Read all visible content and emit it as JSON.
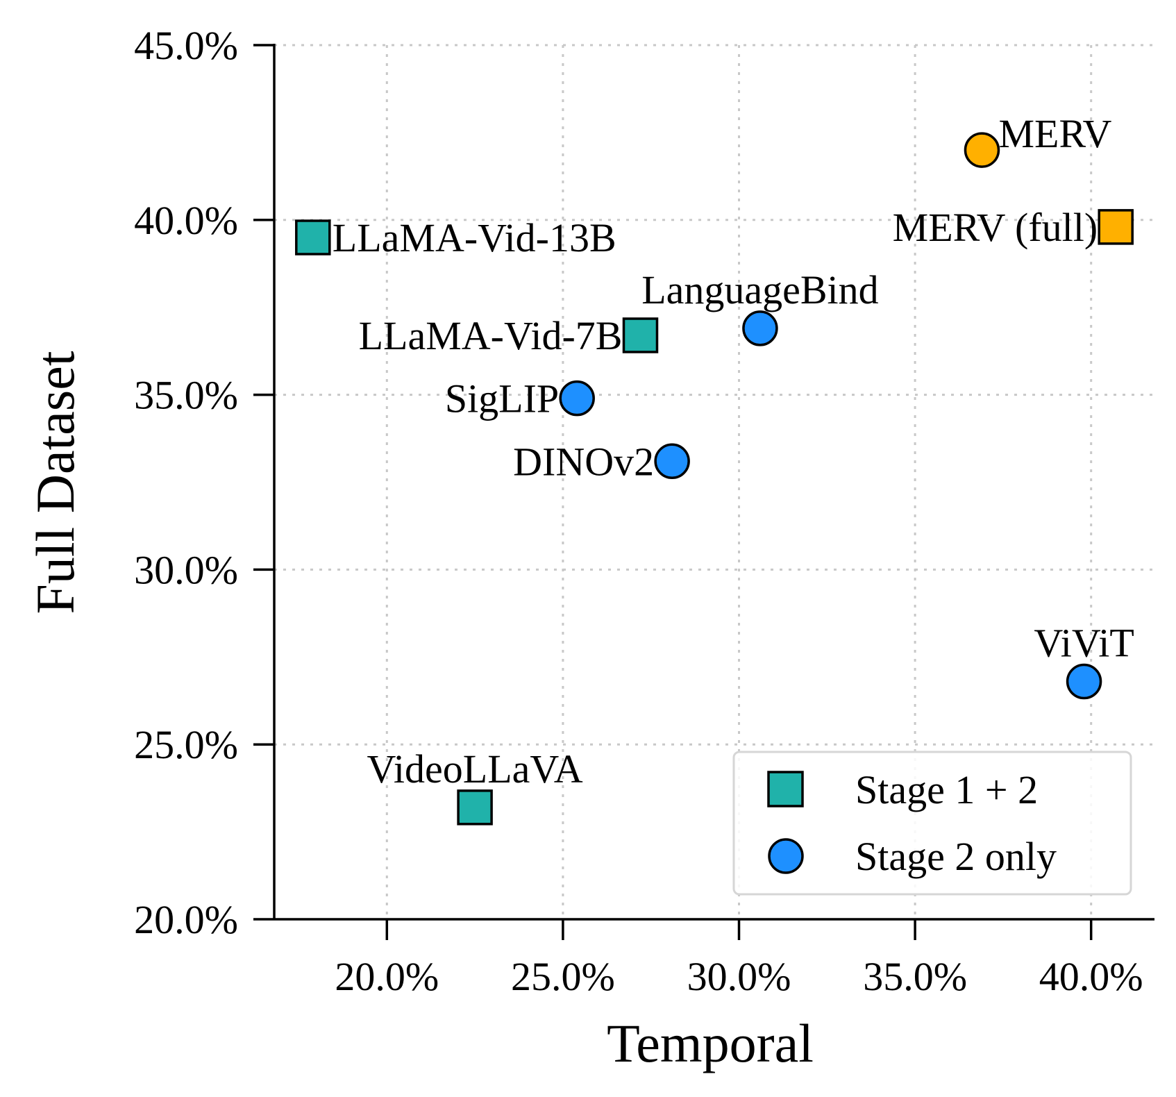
{
  "chart_data": {
    "type": "scatter",
    "xlabel": "Temporal",
    "ylabel": "Full Dataset",
    "xlim": [
      16.8,
      41.8
    ],
    "ylim": [
      20.0,
      45.0
    ],
    "x_ticks": [
      {
        "value": 20,
        "label": "20.0%"
      },
      {
        "value": 25,
        "label": "25.0%"
      },
      {
        "value": 30,
        "label": "30.0%"
      },
      {
        "value": 35,
        "label": "35.0%"
      },
      {
        "value": 40,
        "label": "40.0%"
      }
    ],
    "y_ticks": [
      {
        "value": 20,
        "label": "20.0%"
      },
      {
        "value": 25,
        "label": "25.0%"
      },
      {
        "value": 30,
        "label": "30.0%"
      },
      {
        "value": 35,
        "label": "35.0%"
      },
      {
        "value": 40,
        "label": "40.0%"
      },
      {
        "value": 45,
        "label": "45.0%"
      }
    ],
    "grid": true,
    "legend_position": "bottom-right",
    "legend": [
      {
        "label": "Stage 1 + 2",
        "marker": "square",
        "color": "#20b2aa"
      },
      {
        "label": "Stage 2 only",
        "marker": "circle",
        "color": "#1e90ff"
      }
    ],
    "points": [
      {
        "name": "LLaMA-Vid-13B",
        "x": 17.9,
        "y": 39.5,
        "marker": "square",
        "color": "#20b2aa",
        "label_pos": "right"
      },
      {
        "name": "LLaMA-Vid-7B",
        "x": 27.2,
        "y": 36.7,
        "marker": "square",
        "color": "#20b2aa",
        "label_pos": "left"
      },
      {
        "name": "VideoLLaVA",
        "x": 22.5,
        "y": 23.2,
        "marker": "square",
        "color": "#20b2aa",
        "label_pos": "above"
      },
      {
        "name": "MERV (full)",
        "x": 40.7,
        "y": 39.8,
        "marker": "square",
        "color": "#ffb000",
        "label_pos": "left"
      },
      {
        "name": "MERV",
        "x": 36.9,
        "y": 42.0,
        "marker": "circle",
        "color": "#ffb000",
        "label_pos": "right-up"
      },
      {
        "name": "LanguageBind",
        "x": 30.6,
        "y": 36.9,
        "marker": "circle",
        "color": "#1e90ff",
        "label_pos": "above"
      },
      {
        "name": "SigLIP",
        "x": 25.4,
        "y": 34.9,
        "marker": "circle",
        "color": "#1e90ff",
        "label_pos": "left"
      },
      {
        "name": "DINOv2",
        "x": 28.1,
        "y": 33.1,
        "marker": "circle",
        "color": "#1e90ff",
        "label_pos": "left"
      },
      {
        "name": "ViViT",
        "x": 39.8,
        "y": 26.8,
        "marker": "circle",
        "color": "#1e90ff",
        "label_pos": "above"
      }
    ]
  }
}
